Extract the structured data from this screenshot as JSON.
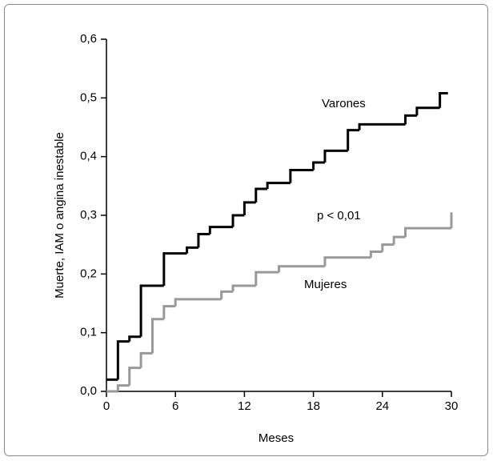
{
  "chart_data": {
    "type": "step",
    "xlabel": "Meses",
    "ylabel": "Muerte, IAM o angina inestable",
    "xlim": [
      0,
      30
    ],
    "ylim": [
      0,
      0.6
    ],
    "xticks": [
      0,
      6,
      12,
      18,
      24,
      30
    ],
    "yticks": [
      {
        "value": 0,
        "label": "0,0"
      },
      {
        "value": 0.1,
        "label": "0,1"
      },
      {
        "value": 0.2,
        "label": "0,2"
      },
      {
        "value": 0.3,
        "label": "0,3"
      },
      {
        "value": 0.4,
        "label": "0,4"
      },
      {
        "value": 0.5,
        "label": "0,5"
      },
      {
        "value": 0.6,
        "label": "0,6"
      }
    ],
    "annotations": [
      "Varones",
      "p < 0,01",
      "Mujeres"
    ],
    "series": [
      {
        "name": "Varones",
        "color": "#000000",
        "x": [
          0,
          1,
          2,
          3,
          5,
          7,
          8,
          9,
          11,
          12,
          13,
          14,
          16,
          18,
          19,
          21,
          22,
          26,
          27,
          29,
          29.7
        ],
        "values": [
          0.02,
          0.085,
          0.093,
          0.18,
          0.235,
          0.245,
          0.268,
          0.28,
          0.3,
          0.322,
          0.345,
          0.355,
          0.377,
          0.39,
          0.41,
          0.445,
          0.455,
          0.47,
          0.483,
          0.508,
          0.508
        ]
      },
      {
        "name": "Mujeres",
        "color": "#999999",
        "x": [
          0,
          1,
          2,
          3,
          4,
          5,
          6,
          10,
          11,
          13,
          15,
          19,
          23,
          24,
          25,
          26,
          30
        ],
        "values": [
          0,
          0.01,
          0.04,
          0.065,
          0.123,
          0.145,
          0.157,
          0.17,
          0.18,
          0.203,
          0.213,
          0.228,
          0.238,
          0.25,
          0.263,
          0.278,
          0.305
        ]
      }
    ]
  }
}
